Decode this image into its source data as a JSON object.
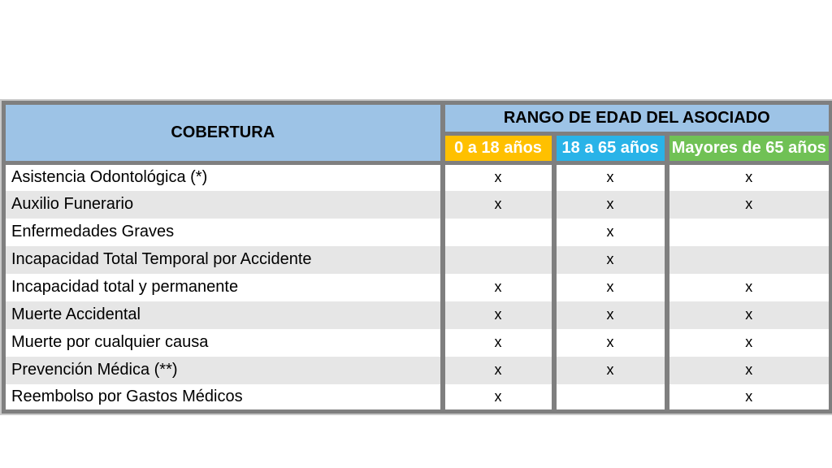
{
  "colors": {
    "header_blue": "#9DC3E6",
    "age_0_18_orange": "#FFC000",
    "age_18_65_cyan": "#29B3E8",
    "age_65_plus_green": "#70C155",
    "row_stripe_gray": "#E6E6E6",
    "table_border_gray": "#7F7F7F",
    "header_text": "#000000",
    "age_header_text": "#FFFFFF"
  },
  "chart_data": {
    "type": "table",
    "header": {
      "col0": "COBERTURA",
      "group": "RANGO DE EDAD DEL ASOCIADO",
      "age_cols": [
        "0 a 18 años",
        "18 a 65 años",
        "Mayores de 65 años"
      ]
    },
    "mark_symbol": "x",
    "rows": [
      {
        "label": "Asistencia Odontológica (*)",
        "marks": [
          "x",
          "x",
          "x"
        ]
      },
      {
        "label": "Auxilio Funerario",
        "marks": [
          "x",
          "x",
          "x"
        ]
      },
      {
        "label": "Enfermedades Graves",
        "marks": [
          "",
          "x",
          ""
        ]
      },
      {
        "label": "Incapacidad Total Temporal por Accidente",
        "marks": [
          "",
          "x",
          ""
        ]
      },
      {
        "label": "Incapacidad total y permanente",
        "marks": [
          "x",
          "x",
          "x"
        ]
      },
      {
        "label": "Muerte Accidental",
        "marks": [
          "x",
          "x",
          "x"
        ]
      },
      {
        "label": "Muerte por cualquier causa",
        "marks": [
          "x",
          "x",
          "x"
        ]
      },
      {
        "label": "Prevención Médica (**)",
        "marks": [
          "x",
          "x",
          "x"
        ]
      },
      {
        "label": "Reembolso por Gastos Médicos",
        "marks": [
          "x",
          "",
          "x"
        ]
      }
    ]
  }
}
